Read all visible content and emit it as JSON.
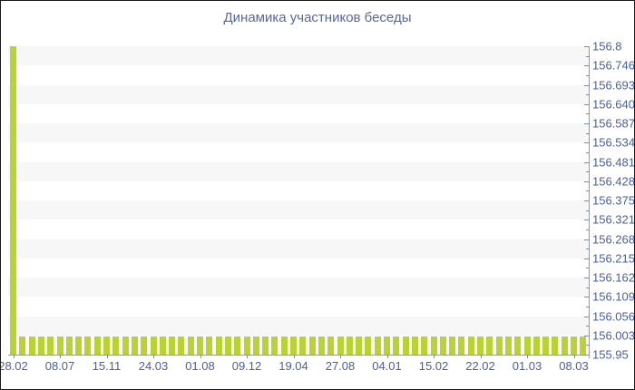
{
  "title": "Динамика участников беседы",
  "chart_data": {
    "type": "bar",
    "title": "Динамика участников беседы",
    "ylim": [
      155.95,
      156.8
    ],
    "y_axis_position": "right",
    "grid": "striped-horizontal-bands",
    "legend": "none",
    "y_tick_labels": [
      "156.8",
      "156.746",
      "156.693",
      "156.640",
      "156.587",
      "156.534",
      "156.481",
      "156.428",
      "156.375",
      "156.321",
      "156.268",
      "156.215",
      "156.162",
      "156.109",
      "156.056",
      "156.003",
      "155.95"
    ],
    "x_tick_labels": [
      "28.02",
      "08.07",
      "15.11",
      "24.03",
      "01.08",
      "09.12",
      "19.04",
      "27.08",
      "04.01",
      "15.02",
      "22.02",
      "01.03",
      "08.03"
    ],
    "x_label_every_n_bars": 5,
    "bar_count": 62,
    "values": [
      156.8,
      156,
      156,
      156,
      156,
      156,
      156,
      156,
      156,
      156,
      156,
      156,
      156,
      156,
      156,
      156,
      156,
      156,
      156,
      156,
      156,
      156,
      156,
      156,
      156,
      156,
      156,
      156,
      156,
      156,
      156,
      156,
      156,
      156,
      156,
      156,
      156,
      156,
      156,
      156,
      156,
      156,
      156,
      156,
      156,
      156,
      156,
      156,
      156,
      156,
      156,
      156,
      156,
      156,
      156,
      156,
      156,
      156,
      156,
      156,
      156,
      156
    ]
  },
  "colors": {
    "bar": "#b9d333",
    "axis_line": "#8b99c4",
    "tick": "#7c8bba",
    "axis_label": "#4a5fa0",
    "title": "#57699c",
    "stripe": "#f7f7f7",
    "background": "#ffffff",
    "border": "#1a1a1a"
  }
}
